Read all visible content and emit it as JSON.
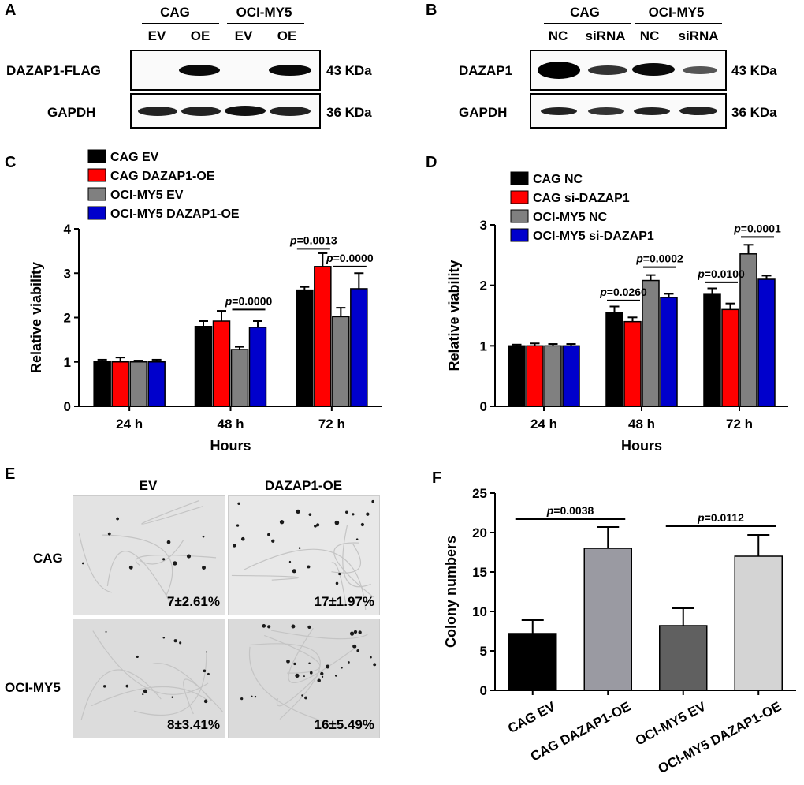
{
  "panels": {
    "A": {
      "letter": "A",
      "groups": [
        "CAG",
        "OCI-MY5"
      ],
      "lanes": [
        "EV",
        "OE",
        "EV",
        "OE"
      ],
      "rows": [
        {
          "protein": "DAZAP1-FLAG",
          "size": "43 KDa"
        },
        {
          "protein": "GAPDH",
          "size": "36 KDa"
        }
      ]
    },
    "B": {
      "letter": "B",
      "groups": [
        "CAG",
        "OCI-MY5"
      ],
      "lanes": [
        "NC",
        "siRNA",
        "NC",
        "siRNA"
      ],
      "rows": [
        {
          "protein": "DAZAP1",
          "size": "43 KDa"
        },
        {
          "protein": "GAPDH",
          "size": "36 KDa"
        }
      ]
    },
    "C": {
      "letter": "C"
    },
    "D": {
      "letter": "D"
    },
    "E": {
      "letter": "E",
      "col_labels": [
        "EV",
        "DAZAP1-OE"
      ],
      "row_labels": [
        "CAG",
        "OCI-MY5"
      ],
      "values": [
        [
          "7±2.61%",
          "17±1.97%"
        ],
        [
          "8±3.41%",
          "16±5.49%"
        ]
      ]
    },
    "F": {
      "letter": "F"
    }
  },
  "chart_data": [
    {
      "panel": "C",
      "type": "bar",
      "categories": [
        "24 h",
        "48 h",
        "72 h"
      ],
      "series": [
        {
          "name": "CAG EV",
          "color": "#000000",
          "values": [
            1.0,
            1.8,
            2.62
          ],
          "errors": [
            0.05,
            0.12,
            0.07
          ]
        },
        {
          "name": "CAG DAZAP1-OE",
          "color": "#ff0000",
          "values": [
            1.0,
            1.92,
            3.15
          ],
          "errors": [
            0.1,
            0.23,
            0.3
          ]
        },
        {
          "name": "OCI-MY5 EV",
          "color": "#808080",
          "values": [
            1.0,
            1.28,
            2.02
          ],
          "errors": [
            0.03,
            0.06,
            0.2
          ]
        },
        {
          "name": "OCI-MY5 DAZAP1-OE",
          "color": "#0000cc",
          "values": [
            1.0,
            1.78,
            2.65
          ],
          "errors": [
            0.05,
            0.14,
            0.35
          ]
        }
      ],
      "xlabel": "Hours",
      "ylabel": "Relative viability",
      "ylim": [
        0,
        4
      ],
      "yticks": [
        "0",
        "1",
        "2",
        "3",
        "4"
      ],
      "annotations": [
        {
          "text": "p=0.0000",
          "prefix": "p",
          "rest": "=0.0000",
          "cat": 1,
          "from": 2,
          "to": 3,
          "level": 2.18
        },
        {
          "text": "p=0.0013",
          "prefix": "p",
          "rest": "=0.0013",
          "cat": 2,
          "from": 0,
          "to": 1,
          "level": 3.55
        },
        {
          "text": "p=0.0000",
          "prefix": "p",
          "rest": "=0.0000",
          "cat": 2,
          "from": 2,
          "to": 3,
          "level": 3.15
        }
      ],
      "legend": "top-left"
    },
    {
      "panel": "D",
      "type": "bar",
      "categories": [
        "24 h",
        "48 h",
        "72 h"
      ],
      "series": [
        {
          "name": "CAG NC",
          "color": "#000000",
          "values": [
            1.0,
            1.55,
            1.85
          ],
          "errors": [
            0.02,
            0.1,
            0.1
          ]
        },
        {
          "name": "CAG si-DAZAP1",
          "color": "#ff0000",
          "values": [
            1.0,
            1.4,
            1.6
          ],
          "errors": [
            0.04,
            0.07,
            0.1
          ]
        },
        {
          "name": "OCI-MY5 NC",
          "color": "#808080",
          "values": [
            1.0,
            2.08,
            2.52
          ],
          "errors": [
            0.03,
            0.09,
            0.15
          ]
        },
        {
          "name": "OCI-MY5 si-DAZAP1",
          "color": "#0000cc",
          "values": [
            1.0,
            1.8,
            2.1
          ],
          "errors": [
            0.03,
            0.06,
            0.06
          ]
        }
      ],
      "xlabel": "Hours",
      "ylabel": "Relative viability",
      "ylim": [
        0,
        3
      ],
      "yticks": [
        "0",
        "1",
        "2",
        "3"
      ],
      "annotations": [
        {
          "text": "p=0.0260",
          "prefix": "p",
          "rest": "=0.0260",
          "cat": 1,
          "from": 0,
          "to": 1,
          "level": 1.75
        },
        {
          "text": "p=0.0002",
          "prefix": "p",
          "rest": "=0.0002",
          "cat": 1,
          "from": 2,
          "to": 3,
          "level": 2.3
        },
        {
          "text": "p=0.0100",
          "prefix": "p",
          "rest": "=0.0100",
          "cat": 2,
          "from": 0,
          "to": 1,
          "level": 2.05
        },
        {
          "text": "p=0.0001",
          "prefix": "p",
          "rest": "=0.0001",
          "cat": 2,
          "from": 2,
          "to": 3,
          "level": 2.8
        }
      ],
      "legend": "top-left"
    },
    {
      "panel": "F",
      "type": "bar",
      "categories": [
        "CAG EV",
        "CAG DAZAP1-OE",
        "OCI-MY5 EV",
        "OCI-MY5 DAZAP1-OE"
      ],
      "colors": [
        "#000000",
        "#9a9aa2",
        "#606060",
        "#d4d4d4"
      ],
      "values": [
        7.2,
        18.0,
        8.2,
        17.0
      ],
      "errors": [
        1.7,
        2.7,
        2.2,
        2.7
      ],
      "ylabel": "Colony numbers",
      "ylim": [
        0,
        25
      ],
      "yticks": [
        "0",
        "5",
        "10",
        "15",
        "20",
        "25"
      ],
      "annotations": [
        {
          "text": "p=0.0038",
          "prefix": "p",
          "rest": "=0.0038",
          "from": 0,
          "to": 1,
          "level": 21.7
        },
        {
          "text": "p=0.0112",
          "prefix": "p",
          "rest": "=0.0112",
          "from": 2,
          "to": 3,
          "level": 20.8
        }
      ]
    }
  ]
}
